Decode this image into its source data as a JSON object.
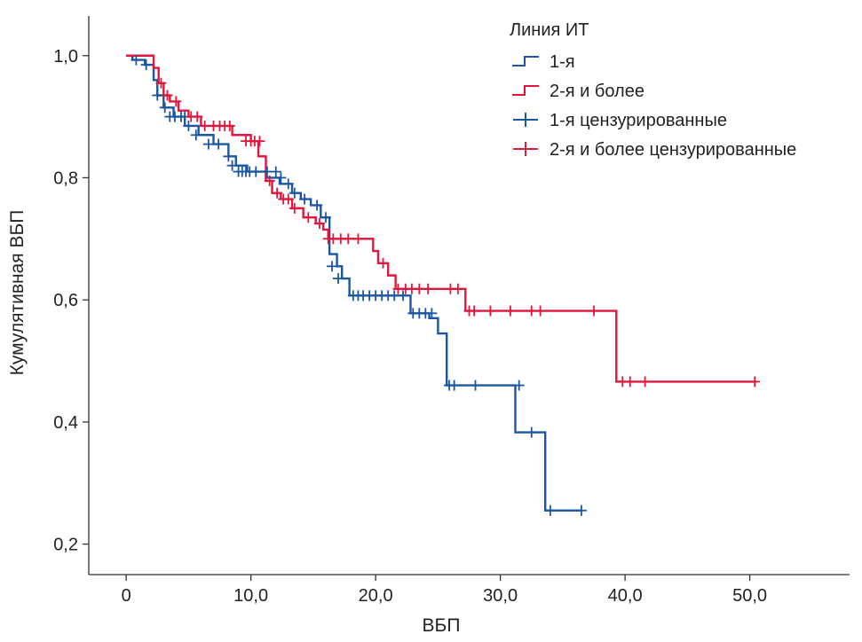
{
  "chart_data": {
    "type": "line",
    "subtype": "kaplan-meier",
    "xlabel": "ВБП",
    "ylabel": "Кумулятивная ВБП",
    "xlim": [
      -3,
      58
    ],
    "ylim": [
      0.15,
      1.065
    ],
    "x_ticks": [
      0,
      10,
      20,
      30,
      40,
      50
    ],
    "x_tick_labels": [
      "0",
      "10,0",
      "20,0",
      "30,0",
      "40,0",
      "50,0"
    ],
    "y_ticks": [
      0.2,
      0.4,
      0.6,
      0.8,
      1.0
    ],
    "y_tick_labels": [
      "0,2",
      "0,4",
      "0,6",
      "0,8",
      "1,0"
    ],
    "legend": {
      "title": "Линия ИТ",
      "position": "top-right",
      "entries": [
        {
          "label": "1-я",
          "kind": "step",
          "color": "#1a57a0"
        },
        {
          "label": "2-я и более",
          "kind": "step",
          "color": "#e0163c"
        },
        {
          "label": "1-я цензурированные",
          "kind": "censor",
          "color": "#1a57a0"
        },
        {
          "label": "2-я и более цензурированные",
          "kind": "censor",
          "color": "#e0163c"
        }
      ]
    },
    "series": [
      {
        "name": "1-я",
        "color": "#1a57a0",
        "x": [
          0,
          0.5,
          1.5,
          2.2,
          2.5,
          3.0,
          3.8,
          4.7,
          5.8,
          7.0,
          8.2,
          8.8,
          9.7,
          11.2,
          12.3,
          13.3,
          14.0,
          14.8,
          15.6,
          16.3,
          16.9,
          17.3,
          17.9,
          22.8,
          24.3,
          25.0,
          25.7,
          31.2,
          33.6,
          36.5
        ],
        "y": [
          1.0,
          0.993,
          0.985,
          0.96,
          0.935,
          0.915,
          0.9,
          0.885,
          0.87,
          0.855,
          0.835,
          0.82,
          0.81,
          0.8,
          0.79,
          0.775,
          0.765,
          0.755,
          0.735,
          0.675,
          0.655,
          0.635,
          0.607,
          0.578,
          0.57,
          0.545,
          0.46,
          0.383,
          0.255,
          0.255
        ]
      },
      {
        "name": "2-я и более",
        "color": "#e0163c",
        "x": [
          0,
          2.2,
          2.6,
          3.0,
          3.5,
          4.2,
          5.0,
          6.0,
          8.5,
          10.0,
          10.6,
          11.2,
          11.7,
          12.4,
          13.3,
          14.2,
          15.2,
          15.8,
          16.2,
          19.8,
          20.2,
          21.0,
          21.6,
          27.2,
          39.3,
          50.5
        ],
        "y": [
          1.0,
          0.98,
          0.955,
          0.935,
          0.925,
          0.91,
          0.9,
          0.885,
          0.87,
          0.86,
          0.835,
          0.795,
          0.775,
          0.765,
          0.75,
          0.735,
          0.725,
          0.715,
          0.7,
          0.68,
          0.66,
          0.64,
          0.618,
          0.582,
          0.466,
          0.466
        ]
      }
    ],
    "censored": [
      {
        "series": "1-я",
        "x": [
          0.8,
          1.6,
          2.5,
          3.1,
          3.5,
          3.9,
          4.4,
          4.7,
          5.0,
          5.6,
          6.6,
          7.4,
          8.2,
          8.5,
          9.0,
          9.3,
          9.6,
          9.9,
          10.4,
          11.3,
          12.0,
          12.4,
          13.0,
          13.5,
          14.3,
          15.3,
          16.0,
          16.5,
          17.0,
          18.2,
          18.6,
          19.0,
          19.5,
          20.0,
          20.5,
          21.0,
          21.5,
          22.2,
          23.0,
          23.5,
          24.0,
          24.5,
          25.9,
          26.3,
          28.0,
          31.5,
          32.5,
          34.0,
          36.5
        ],
        "y": [
          0.993,
          0.985,
          0.935,
          0.915,
          0.9,
          0.9,
          0.9,
          0.9,
          0.885,
          0.87,
          0.855,
          0.855,
          0.835,
          0.82,
          0.81,
          0.81,
          0.81,
          0.81,
          0.81,
          0.81,
          0.81,
          0.8,
          0.79,
          0.775,
          0.765,
          0.755,
          0.735,
          0.655,
          0.635,
          0.607,
          0.607,
          0.607,
          0.607,
          0.607,
          0.607,
          0.607,
          0.607,
          0.607,
          0.578,
          0.578,
          0.578,
          0.578,
          0.46,
          0.46,
          0.46,
          0.46,
          0.383,
          0.255,
          0.255
        ]
      },
      {
        "series": "2-я и более",
        "x": [
          2.8,
          3.3,
          4.0,
          5.2,
          5.7,
          6.3,
          7.0,
          7.5,
          7.9,
          8.3,
          9.6,
          10.0,
          10.3,
          10.7,
          11.5,
          12.1,
          12.6,
          13.0,
          13.5,
          14.6,
          15.5,
          16.2,
          16.6,
          17.2,
          17.8,
          18.6,
          20.6,
          21.8,
          22.4,
          22.9,
          23.5,
          24.2,
          26.0,
          26.6,
          27.5,
          27.9,
          29.2,
          30.8,
          32.5,
          33.2,
          37.5,
          39.8,
          40.4,
          41.6,
          50.4
        ],
        "y": [
          0.955,
          0.935,
          0.925,
          0.9,
          0.9,
          0.885,
          0.885,
          0.885,
          0.885,
          0.885,
          0.86,
          0.86,
          0.86,
          0.86,
          0.795,
          0.775,
          0.765,
          0.765,
          0.75,
          0.735,
          0.725,
          0.7,
          0.7,
          0.7,
          0.7,
          0.7,
          0.66,
          0.618,
          0.618,
          0.618,
          0.618,
          0.618,
          0.618,
          0.618,
          0.582,
          0.582,
          0.582,
          0.582,
          0.582,
          0.582,
          0.582,
          0.466,
          0.466,
          0.466,
          0.466
        ]
      }
    ]
  }
}
